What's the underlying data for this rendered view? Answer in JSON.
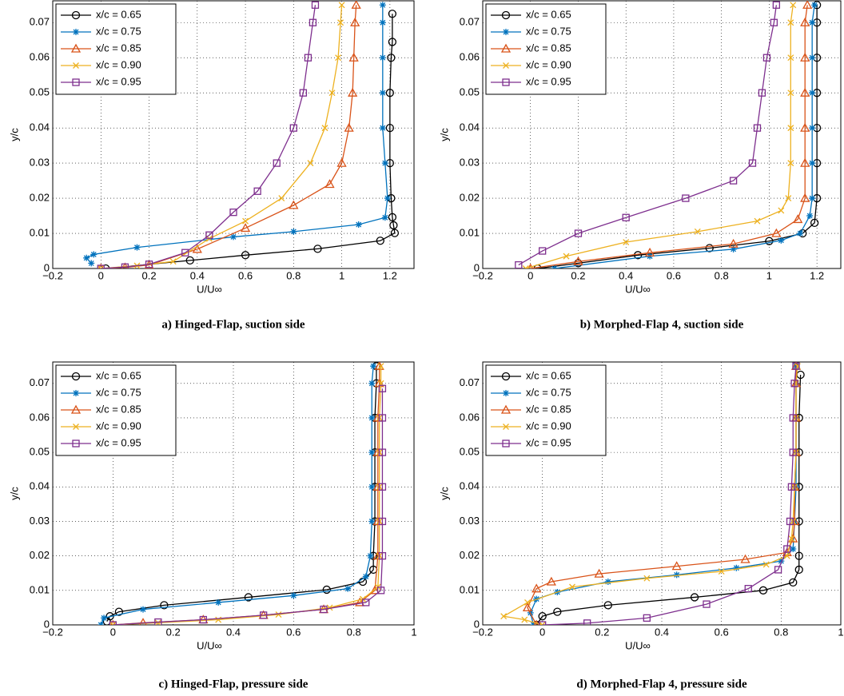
{
  "chart_data": [
    {
      "type": "line",
      "title": "a)  Hinged-Flap, suction side",
      "xlabel": "U/U∞",
      "ylabel": "y/c",
      "xlim": [
        -0.2,
        1.3
      ],
      "ylim": [
        0,
        0.0762
      ],
      "xticks": [
        {
          "value": -0.2,
          "label": "−0.2"
        },
        0,
        0.2,
        0.4,
        0.6,
        0.8,
        1,
        1.2
      ],
      "yticks": [
        0,
        0.01,
        0.02,
        0.03,
        0.04,
        0.05,
        0.06,
        0.07
      ],
      "grid": true,
      "legend": "upper left",
      "series": [
        {
          "name": "x/c = 0.65",
          "color": "#000000",
          "marker": "circle",
          "x": [
            0.02,
            0.37,
            0.6,
            0.9,
            1.16,
            1.22,
            1.215,
            1.21,
            1.205,
            1.2,
            1.2,
            1.2,
            1.205,
            1.21,
            1.21
          ],
          "values": [
            0,
            0.0023,
            0.0038,
            0.0056,
            0.0079,
            0.0101,
            0.0123,
            0.0146,
            0.02,
            0.03,
            0.04,
            0.05,
            0.06,
            0.0645,
            0.0725
          ]
        },
        {
          "name": "x/c = 0.75",
          "color": "#0072bd",
          "marker": "star",
          "x": [
            -0.04,
            -0.06,
            -0.03,
            0.15,
            0.55,
            0.8,
            1.07,
            1.18,
            1.19,
            1.18,
            1.17,
            1.17,
            1.17,
            1.17,
            1.17
          ],
          "values": [
            0.0015,
            0.003,
            0.004,
            0.006,
            0.009,
            0.0105,
            0.0125,
            0.0145,
            0.02,
            0.03,
            0.04,
            0.05,
            0.06,
            0.07,
            0.075
          ]
        },
        {
          "name": "x/c = 0.85",
          "color": "#d95319",
          "marker": "triangle",
          "x": [
            0,
            0.1,
            0.2,
            0.4,
            0.6,
            0.8,
            0.95,
            1,
            1.03,
            1.045,
            1.05,
            1.055,
            1.06
          ],
          "values": [
            0,
            0.0003,
            0.001,
            0.0055,
            0.0115,
            0.018,
            0.024,
            0.03,
            0.04,
            0.05,
            0.06,
            0.07,
            0.075
          ]
        },
        {
          "name": "x/c = 0.90",
          "color": "#edb120",
          "marker": "x",
          "x": [
            0,
            0.15,
            0.3,
            0.45,
            0.6,
            0.75,
            0.87,
            0.93,
            0.96,
            0.985,
            0.995,
            1
          ],
          "values": [
            0,
            0.0008,
            0.002,
            0.0085,
            0.0135,
            0.02,
            0.03,
            0.04,
            0.05,
            0.06,
            0.07,
            0.075
          ]
        },
        {
          "name": "x/c = 0.95",
          "color": "#7e2f8e",
          "marker": "square",
          "x": [
            0,
            0.1,
            0.2,
            0.35,
            0.45,
            0.55,
            0.65,
            0.73,
            0.8,
            0.84,
            0.86,
            0.88,
            0.89
          ],
          "values": [
            0,
            0.0004,
            0.0012,
            0.0045,
            0.0095,
            0.016,
            0.022,
            0.03,
            0.04,
            0.05,
            0.06,
            0.07,
            0.075
          ]
        }
      ]
    },
    {
      "type": "line",
      "title": "b)  Morphed-Flap 4, suction side",
      "xlabel": "U/U∞",
      "ylabel": "y/c",
      "xlim": [
        -0.2,
        1.3
      ],
      "ylim": [
        0,
        0.0762
      ],
      "xticks": [
        {
          "value": -0.2,
          "label": "−0.2"
        },
        0,
        0.2,
        0.4,
        0.6,
        0.8,
        1,
        1.2
      ],
      "yticks": [
        0,
        0.01,
        0.02,
        0.03,
        0.04,
        0.05,
        0.06,
        0.07
      ],
      "grid": true,
      "legend": "upper left",
      "series": [
        {
          "name": "x/c = 0.65",
          "color": "#000000",
          "marker": "circle",
          "x": [
            0.03,
            0.2,
            0.45,
            0.75,
            1,
            1.14,
            1.19,
            1.2,
            1.2,
            1.2,
            1.2,
            1.2,
            1.2,
            1.2
          ],
          "values": [
            0,
            0.0015,
            0.0038,
            0.0058,
            0.0078,
            0.01,
            0.013,
            0.02,
            0.03,
            0.04,
            0.05,
            0.06,
            0.07,
            0.075
          ]
        },
        {
          "name": "x/c = 0.75",
          "color": "#0072bd",
          "marker": "star",
          "x": [
            0.1,
            0.5,
            0.85,
            1.05,
            1.13,
            1.17,
            1.18,
            1.18,
            1.18,
            1.18,
            1.18,
            1.18,
            1.19
          ],
          "values": [
            0,
            0.0035,
            0.0055,
            0.008,
            0.01,
            0.015,
            0.02,
            0.03,
            0.04,
            0.05,
            0.06,
            0.07,
            0.075
          ]
        },
        {
          "name": "x/c = 0.85",
          "color": "#d95319",
          "marker": "triangle",
          "x": [
            0,
            0.2,
            0.5,
            0.85,
            1.03,
            1.12,
            1.15,
            1.15,
            1.15,
            1.15,
            1.15,
            1.15,
            1.16
          ],
          "values": [
            0,
            0.002,
            0.0045,
            0.007,
            0.01,
            0.014,
            0.02,
            0.03,
            0.04,
            0.05,
            0.06,
            0.07,
            0.075
          ]
        },
        {
          "name": "x/c = 0.90",
          "color": "#edb120",
          "marker": "x",
          "x": [
            -0.02,
            0.15,
            0.4,
            0.7,
            0.95,
            1.05,
            1.08,
            1.09,
            1.09,
            1.09,
            1.09,
            1.09,
            1.1
          ],
          "values": [
            0,
            0.0035,
            0.0075,
            0.0105,
            0.0135,
            0.0165,
            0.02,
            0.03,
            0.04,
            0.05,
            0.06,
            0.07,
            0.075
          ]
        },
        {
          "name": "x/c = 0.95",
          "color": "#7e2f8e",
          "marker": "square",
          "x": [
            -0.05,
            0.05,
            0.2,
            0.4,
            0.65,
            0.85,
            0.93,
            0.95,
            0.97,
            0.99,
            1.02,
            1.03
          ],
          "values": [
            0.001,
            0.005,
            0.01,
            0.0145,
            0.02,
            0.025,
            0.03,
            0.04,
            0.05,
            0.06,
            0.07,
            0.075
          ]
        }
      ]
    },
    {
      "type": "line",
      "title": "c)  Hinged-Flap, pressure side",
      "xlabel": "U/U∞",
      "ylabel": "y/c",
      "xlim": [
        -0.2,
        1
      ],
      "ylim": [
        0,
        0.0762
      ],
      "xticks": [
        {
          "value": -0.2,
          "label": "−0.2"
        },
        0,
        0.2,
        0.4,
        0.6,
        0.8,
        1
      ],
      "yticks": [
        0,
        0.01,
        0.02,
        0.03,
        0.04,
        0.05,
        0.06,
        0.07
      ],
      "grid": true,
      "legend": "upper left",
      "series": [
        {
          "name": "x/c = 0.65",
          "color": "#000000",
          "marker": "circle",
          "x": [
            -0.02,
            -0.01,
            0.02,
            0.17,
            0.45,
            0.71,
            0.83,
            0.865,
            0.865,
            0.87,
            0.87,
            0.87,
            0.87,
            0.875,
            0.875
          ],
          "values": [
            0.001,
            0.0025,
            0.0038,
            0.0057,
            0.008,
            0.0102,
            0.0125,
            0.016,
            0.02,
            0.03,
            0.04,
            0.05,
            0.06,
            0.07,
            0.075
          ]
        },
        {
          "name": "x/c = 0.75",
          "color": "#0072bd",
          "marker": "star",
          "x": [
            -0.04,
            -0.03,
            0.1,
            0.35,
            0.6,
            0.78,
            0.84,
            0.855,
            0.86,
            0.86,
            0.86,
            0.86,
            0.86,
            0.865
          ],
          "values": [
            0,
            0.002,
            0.0045,
            0.0065,
            0.0085,
            0.0105,
            0.014,
            0.02,
            0.03,
            0.04,
            0.05,
            0.06,
            0.07,
            0.075
          ]
        },
        {
          "name": "x/c = 0.85",
          "color": "#d95319",
          "marker": "triangle",
          "x": [
            0,
            0.1,
            0.3,
            0.5,
            0.7,
            0.82,
            0.87,
            0.88,
            0.88,
            0.88,
            0.88,
            0.88,
            0.885,
            0.885
          ],
          "values": [
            0,
            0.0006,
            0.0015,
            0.0028,
            0.0045,
            0.0065,
            0.01,
            0.02,
            0.03,
            0.04,
            0.05,
            0.06,
            0.07,
            0.075
          ]
        },
        {
          "name": "x/c = 0.90",
          "color": "#edb120",
          "marker": "x",
          "x": [
            0,
            0.15,
            0.35,
            0.55,
            0.72,
            0.83,
            0.88,
            0.885,
            0.885,
            0.885,
            0.885,
            0.885,
            0.89,
            0.89
          ],
          "values": [
            0,
            0.0006,
            0.0015,
            0.003,
            0.005,
            0.0075,
            0.011,
            0.02,
            0.03,
            0.04,
            0.05,
            0.06,
            0.07,
            0.075
          ]
        },
        {
          "name": "x/c = 0.95",
          "color": "#7e2f8e",
          "marker": "square",
          "x": [
            0,
            0.15,
            0.3,
            0.5,
            0.7,
            0.84,
            0.89,
            0.895,
            0.895,
            0.895,
            0.895,
            0.895,
            0.895
          ],
          "values": [
            0,
            0.0008,
            0.0015,
            0.0028,
            0.0045,
            0.0065,
            0.01,
            0.02,
            0.03,
            0.04,
            0.05,
            0.06,
            0.0685
          ]
        }
      ]
    },
    {
      "type": "line",
      "title": "d)  Morphed-Flap 4, pressure side",
      "xlabel": "U/U∞",
      "ylabel": "y/c",
      "xlim": [
        -0.2,
        1
      ],
      "ylim": [
        0,
        0.0762
      ],
      "xticks": [
        {
          "value": -0.2,
          "label": "−0.2"
        },
        0,
        0.2,
        0.4,
        0.6,
        0.8,
        1
      ],
      "yticks": [
        0,
        0.01,
        0.02,
        0.03,
        0.04,
        0.05,
        0.06,
        0.07
      ],
      "grid": true,
      "legend": "upper left",
      "series": [
        {
          "name": "x/c = 0.65",
          "color": "#000000",
          "marker": "circle",
          "x": [
            -0.02,
            0,
            0.05,
            0.22,
            0.51,
            0.74,
            0.84,
            0.86,
            0.86,
            0.86,
            0.86,
            0.86,
            0.86,
            0.865
          ],
          "values": [
            0,
            0.0025,
            0.0038,
            0.0057,
            0.008,
            0.01,
            0.0123,
            0.016,
            0.02,
            0.03,
            0.04,
            0.05,
            0.06,
            0.0725
          ]
        },
        {
          "name": "x/c = 0.75",
          "color": "#0072bd",
          "marker": "star",
          "x": [
            -0.03,
            -0.04,
            -0.02,
            0.05,
            0.22,
            0.45,
            0.65,
            0.8,
            0.84,
            0.845,
            0.85,
            0.85,
            0.85,
            0.85,
            0.85
          ],
          "values": [
            0,
            0.0035,
            0.0075,
            0.0095,
            0.0125,
            0.0145,
            0.0165,
            0.0185,
            0.022,
            0.03,
            0.04,
            0.05,
            0.06,
            0.07,
            0.075
          ]
        },
        {
          "name": "x/c = 0.85",
          "color": "#d95319",
          "marker": "triangle",
          "x": [
            -0.02,
            -0.05,
            -0.02,
            0.03,
            0.19,
            0.45,
            0.68,
            0.82,
            0.84,
            0.845,
            0.845,
            0.85,
            0.85,
            0.85,
            0.85
          ],
          "values": [
            0,
            0.005,
            0.0105,
            0.0125,
            0.0148,
            0.017,
            0.019,
            0.021,
            0.025,
            0.03,
            0.04,
            0.05,
            0.06,
            0.07,
            0.075
          ]
        },
        {
          "name": "x/c = 0.90",
          "color": "#edb120",
          "marker": "x",
          "x": [
            0,
            -0.06,
            -0.13,
            -0.05,
            0.1,
            0.35,
            0.6,
            0.75,
            0.82,
            0.835,
            0.84,
            0.845,
            0.85,
            0.85,
            0.85,
            0.855
          ],
          "values": [
            0,
            0.0015,
            0.0025,
            0.0065,
            0.011,
            0.0135,
            0.0155,
            0.0175,
            0.02,
            0.025,
            0.03,
            0.04,
            0.05,
            0.06,
            0.07,
            0.075
          ]
        },
        {
          "name": "x/c = 0.95",
          "color": "#7e2f8e",
          "marker": "square",
          "x": [
            0,
            0.15,
            0.35,
            0.55,
            0.69,
            0.79,
            0.82,
            0.83,
            0.835,
            0.84,
            0.84,
            0.845,
            0.85
          ],
          "values": [
            0,
            0.0005,
            0.002,
            0.006,
            0.0105,
            0.016,
            0.022,
            0.03,
            0.04,
            0.05,
            0.06,
            0.07,
            0.075
          ]
        }
      ]
    }
  ]
}
